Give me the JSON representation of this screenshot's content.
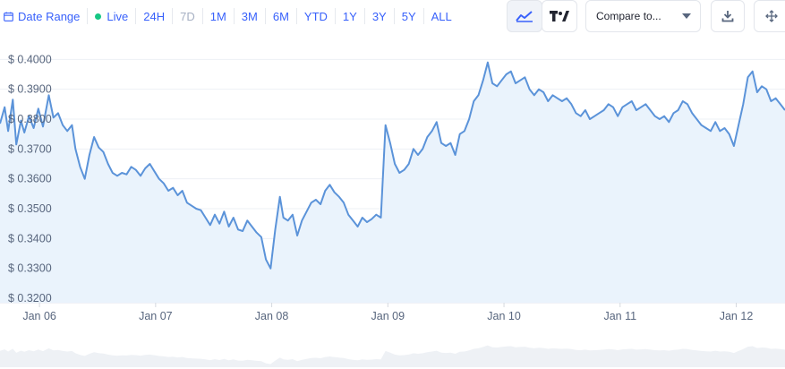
{
  "toolbar": {
    "date_range_label": "Date Range",
    "live_label": "Live",
    "live_color": "#16c784",
    "ranges": [
      {
        "label": "24H",
        "enabled": true
      },
      {
        "label": "7D",
        "enabled": false
      },
      {
        "label": "1M",
        "enabled": true
      },
      {
        "label": "3M",
        "enabled": true
      },
      {
        "label": "6M",
        "enabled": true
      },
      {
        "label": "YTD",
        "enabled": true
      },
      {
        "label": "1Y",
        "enabled": true
      },
      {
        "label": "3Y",
        "enabled": true
      },
      {
        "label": "5Y",
        "enabled": true
      },
      {
        "label": "ALL",
        "enabled": true
      }
    ],
    "compare_label": "Compare to...",
    "icons": [
      "calendar-icon",
      "line-chart-icon",
      "tradingview-icon",
      "download-icon",
      "fullscreen-icon"
    ]
  },
  "colors": {
    "accent": "#3861fb",
    "line": "#5b93d9",
    "area": "#eaf3fc",
    "grid": "#edf0f4",
    "text": "#58667e"
  },
  "chart_data": {
    "type": "area",
    "title": "",
    "xlabel": "",
    "ylabel": "",
    "x_tick_labels": [
      "Jan 06",
      "Jan 07",
      "Jan 08",
      "Jan 09",
      "Jan 10",
      "Jan 11",
      "Jan 12"
    ],
    "y_tick_labels": [
      "$ 0.4000",
      "$ 0.3900",
      "$ 0.3800",
      "$ 0.3700",
      "$ 0.3600",
      "$ 0.3500",
      "$ 0.3400",
      "$ 0.3300",
      "$ 0.3200"
    ],
    "y_ticks": [
      0.4,
      0.39,
      0.38,
      0.37,
      0.36,
      0.35,
      0.34,
      0.33,
      0.32
    ],
    "ylim": [
      0.3185,
      0.4025
    ],
    "xlim": [
      5.66,
      12.42
    ],
    "grid": true,
    "series": [
      {
        "x": [
          5.66,
          5.7,
          5.73,
          5.77,
          5.8,
          5.84,
          5.87,
          5.91,
          5.95,
          5.99,
          6.03,
          6.08,
          6.12,
          6.16,
          6.2,
          6.24,
          6.28,
          6.31,
          6.35,
          6.39,
          6.43,
          6.47,
          6.51,
          6.55,
          6.59,
          6.63,
          6.67,
          6.71,
          6.75,
          6.79,
          6.83,
          6.87,
          6.91,
          6.95,
          6.99,
          7.03,
          7.07,
          7.11,
          7.15,
          7.19,
          7.23,
          7.27,
          7.31,
          7.35,
          7.39,
          7.43,
          7.47,
          7.51,
          7.55,
          7.59,
          7.63,
          7.67,
          7.71,
          7.75,
          7.79,
          7.83,
          7.87,
          7.91,
          7.95,
          7.99,
          8.03,
          8.07,
          8.1,
          8.14,
          8.18,
          8.22,
          8.26,
          8.3,
          8.34,
          8.38,
          8.42,
          8.46,
          8.5,
          8.54,
          8.58,
          8.62,
          8.66,
          8.7,
          8.74,
          8.78,
          8.82,
          8.86,
          8.9,
          8.94,
          8.98,
          9.02,
          9.06,
          9.1,
          9.14,
          9.18,
          9.22,
          9.26,
          9.3,
          9.34,
          9.38,
          9.42,
          9.46,
          9.5,
          9.54,
          9.58,
          9.62,
          9.66,
          9.7,
          9.74,
          9.78,
          9.82,
          9.86,
          9.9,
          9.94,
          9.98,
          10.02,
          10.06,
          10.1,
          10.14,
          10.18,
          10.22,
          10.26,
          10.3,
          10.34,
          10.38,
          10.42,
          10.46,
          10.5,
          10.54,
          10.58,
          10.62,
          10.66,
          10.7,
          10.74,
          10.78,
          10.82,
          10.86,
          10.9,
          10.94,
          10.98,
          11.02,
          11.06,
          11.1,
          11.14,
          11.18,
          11.22,
          11.26,
          11.3,
          11.34,
          11.38,
          11.42,
          11.46,
          11.5,
          11.54,
          11.58,
          11.62,
          11.66,
          11.7,
          11.74,
          11.78,
          11.82,
          11.86,
          11.9,
          11.94,
          11.98,
          12.02,
          12.06,
          12.1,
          12.14,
          12.18,
          12.22,
          12.26,
          12.3,
          12.34,
          12.38,
          12.42
        ],
        "y": [
          0.3785,
          0.384,
          0.376,
          0.3865,
          0.3715,
          0.3795,
          0.3755,
          0.381,
          0.377,
          0.3835,
          0.3775,
          0.388,
          0.3805,
          0.382,
          0.378,
          0.376,
          0.378,
          0.37,
          0.364,
          0.36,
          0.368,
          0.374,
          0.3705,
          0.369,
          0.365,
          0.362,
          0.361,
          0.362,
          0.3615,
          0.364,
          0.363,
          0.361,
          0.3635,
          0.365,
          0.3625,
          0.36,
          0.3585,
          0.356,
          0.357,
          0.3545,
          0.356,
          0.352,
          0.351,
          0.35,
          0.3495,
          0.347,
          0.3445,
          0.348,
          0.345,
          0.349,
          0.344,
          0.347,
          0.343,
          0.3425,
          0.346,
          0.344,
          0.342,
          0.3405,
          0.333,
          0.33,
          0.343,
          0.354,
          0.347,
          0.346,
          0.348,
          0.341,
          0.346,
          0.349,
          0.352,
          0.353,
          0.3515,
          0.356,
          0.358,
          0.3555,
          0.354,
          0.352,
          0.348,
          0.346,
          0.344,
          0.347,
          0.3455,
          0.3465,
          0.348,
          0.347,
          0.378,
          0.372,
          0.365,
          0.362,
          0.363,
          0.365,
          0.37,
          0.368,
          0.37,
          0.374,
          0.376,
          0.379,
          0.372,
          0.371,
          0.372,
          0.368,
          0.375,
          0.376,
          0.38,
          0.386,
          0.388,
          0.393,
          0.399,
          0.392,
          0.391,
          0.393,
          0.395,
          0.396,
          0.392,
          0.393,
          0.394,
          0.39,
          0.388,
          0.39,
          0.389,
          0.386,
          0.388,
          0.387,
          0.386,
          0.387,
          0.385,
          0.382,
          0.381,
          0.383,
          0.38,
          0.381,
          0.382,
          0.383,
          0.385,
          0.384,
          0.381,
          0.384,
          0.385,
          0.386,
          0.383,
          0.384,
          0.385,
          0.383,
          0.381,
          0.38,
          0.381,
          0.379,
          0.382,
          0.383,
          0.386,
          0.385,
          0.382,
          0.38,
          0.378,
          0.377,
          0.376,
          0.379,
          0.376,
          0.377,
          0.375,
          0.371,
          0.378,
          0.385,
          0.394,
          0.396,
          0.389,
          0.391,
          0.39,
          0.386,
          0.387,
          0.385,
          0.383
        ]
      }
    ]
  }
}
